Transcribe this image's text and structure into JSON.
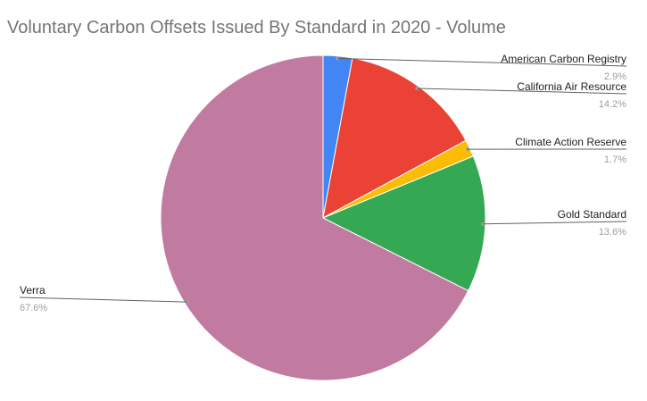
{
  "chart_data": {
    "type": "pie",
    "title": "Voluntary Carbon Offsets Issued By Standard in 2020 - Volume",
    "slices": [
      {
        "label": "American Carbon Registry",
        "value": 2.9,
        "display": "2.9%",
        "color": "#4285f4"
      },
      {
        "label": "California Air Resource",
        "value": 14.2,
        "display": "14.2%",
        "color": "#ea4335"
      },
      {
        "label": "Climate Action Reserve",
        "value": 1.7,
        "display": "1.7%",
        "color": "#fbbc04"
      },
      {
        "label": "Gold Standard",
        "value": 13.6,
        "display": "13.6%",
        "color": "#34a853"
      },
      {
        "label": "Verra",
        "value": 67.6,
        "display": "67.6%",
        "color": "#c27ba0"
      }
    ],
    "legend": "none",
    "label_style": "callout"
  }
}
